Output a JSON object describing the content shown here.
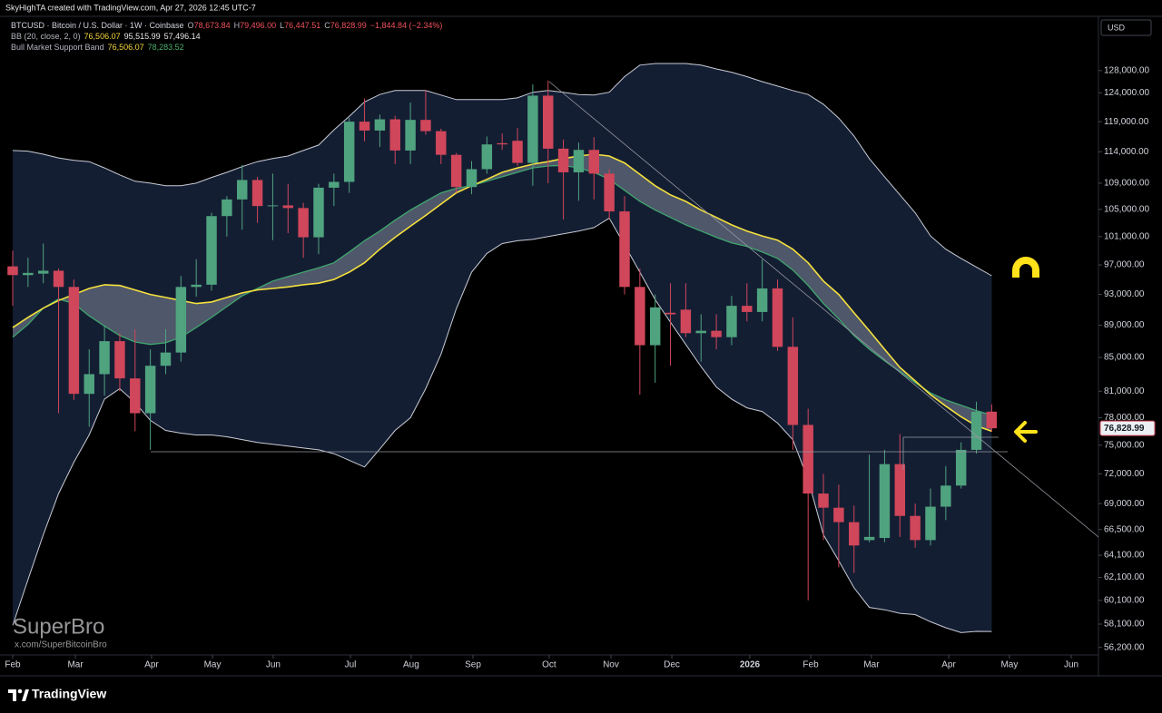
{
  "header": {
    "caption": "SkyHighTA created with TradingView.com, Apr 27, 2026 12:45 UTC-7"
  },
  "chart_data": {
    "type": "candlestick",
    "legend": {
      "ohlc": [
        {
          "label": "O",
          "value": "78,673.84"
        },
        {
          "label": "H",
          "value": "79,496.00"
        },
        {
          "label": "L",
          "value": "76,447.51"
        },
        {
          "label": "C",
          "value": "76,828.99"
        }
      ],
      "change": "−1,844.84 (−2.34%)",
      "change_color": "#f0525e",
      "bb": {
        "label": "BB (20, close, 2, 0)",
        "values": [
          "76,506.07",
          "95,515.99",
          "57,496.14"
        ],
        "colors": [
          "#f5d63d",
          "#e6e6e6",
          "#e6e6e6"
        ]
      },
      "band": {
        "label": "Bull Market Support Band",
        "values": [
          "76,506.07",
          "78,283.52"
        ],
        "colors": [
          "#f5d63d",
          "#4caf6e"
        ]
      }
    },
    "currency": "USD",
    "last_price_label": "76,828.99",
    "series": [
      {
        "name": "BTCUSD · Bitcoin / U.S. Dollar · 1W · Coinbase",
        "up_color": "#4fa37f",
        "down_color": "#d0465a",
        "open": [
          96800,
          95600,
          95800,
          96200,
          94000,
          80700,
          83000,
          87000,
          82500,
          78500,
          84000,
          85600,
          94000,
          94300,
          104000,
          106500,
          109500,
          105500,
          105600,
          105200,
          100900,
          108300,
          109200,
          119000,
          117500,
          119400,
          114200,
          119300,
          117400,
          113500,
          108400,
          111200,
          115400,
          115800,
          112200,
          123500,
          114500,
          110700,
          114300,
          110500,
          104700,
          94000,
          86500,
          90600,
          91000,
          88000,
          88300,
          87500,
          91500,
          90700,
          93800,
          86300,
          77200,
          70000,
          68600,
          67200,
          65500,
          65700,
          73000,
          67800,
          65500,
          68700,
          70800,
          74500,
          78673.84
        ],
        "high": [
          99000,
          98000,
          100000,
          96500,
          95000,
          86000,
          89000,
          88000,
          88500,
          86000,
          88500,
          95500,
          97800,
          104500,
          107000,
          111900,
          110000,
          110500,
          108900,
          106000,
          108900,
          110500,
          119600,
          123000,
          120200,
          120000,
          122300,
          124500,
          117800,
          113800,
          112500,
          116500,
          117000,
          117900,
          125500,
          126200,
          116000,
          115500,
          116400,
          111200,
          107000,
          96500,
          93000,
          94500,
          94500,
          90400,
          90400,
          92800,
          94500,
          97800,
          95000,
          90000,
          79000,
          72000,
          70900,
          68800,
          74000,
          74500,
          76200,
          69000,
          70500,
          72800,
          75300,
          79800,
          79496
        ],
        "low": [
          91500,
          94000,
          94500,
          78500,
          80000,
          77000,
          80500,
          81000,
          76500,
          74500,
          83000,
          84500,
          92700,
          93500,
          101000,
          102000,
          103000,
          100500,
          101500,
          98000,
          98500,
          105500,
          107500,
          115700,
          114800,
          112000,
          112000,
          116800,
          112000,
          107500,
          107300,
          110500,
          114300,
          111700,
          108600,
          109000,
          103500,
          106300,
          106500,
          103500,
          93000,
          80600,
          82000,
          84000,
          87500,
          84500,
          86000,
          86500,
          89500,
          89500,
          85800,
          74500,
          60100,
          65500,
          63000,
          62500,
          65300,
          65300,
          65800,
          64800,
          65000,
          67400,
          70500,
          74100,
          76447.51
        ],
        "close": [
          95600,
          95900,
          96200,
          94000,
          80700,
          83000,
          87000,
          82500,
          78500,
          84000,
          85600,
          94000,
          94300,
          104000,
          106500,
          109500,
          105500,
          105600,
          105200,
          100900,
          108300,
          109200,
          119000,
          117500,
          119400,
          114200,
          119300,
          117400,
          113500,
          108400,
          111200,
          115200,
          115200,
          112200,
          123500,
          114500,
          110700,
          114300,
          110500,
          104700,
          94000,
          86500,
          91300,
          90400,
          88000,
          88300,
          87500,
          91500,
          90700,
          93800,
          86300,
          77200,
          70000,
          68600,
          67200,
          65000,
          65800,
          73000,
          67800,
          65500,
          68700,
          70800,
          74500,
          78673.84,
          76828.99
        ]
      }
    ],
    "bollinger": {
      "line_color": "#c9ccd6",
      "fill": "#141e33",
      "upper": [
        114200,
        114100,
        113600,
        113000,
        112600,
        112400,
        111400,
        110300,
        109300,
        109000,
        108600,
        108600,
        109000,
        109900,
        110700,
        111600,
        112400,
        112900,
        113300,
        114200,
        115100,
        117600,
        119900,
        122400,
        123700,
        124400,
        124400,
        124400,
        123600,
        122800,
        122800,
        122800,
        122800,
        123100,
        124100,
        124400,
        124100,
        123700,
        123600,
        124100,
        126900,
        129000,
        129300,
        129300,
        129300,
        129000,
        128300,
        127700,
        126900,
        126000,
        125200,
        124400,
        123700,
        122000,
        119600,
        116600,
        112900,
        110000,
        107200,
        104500,
        101100,
        99200,
        97900,
        96700,
        95515.99
      ],
      "lower": [
        58000,
        61900,
        66000,
        70000,
        73200,
        76100,
        80100,
        81300,
        79700,
        77700,
        76600,
        76300,
        76100,
        76100,
        75900,
        75600,
        75300,
        75100,
        74900,
        74700,
        74500,
        74100,
        73400,
        72700,
        74600,
        76600,
        78000,
        81300,
        85400,
        91100,
        96000,
        98600,
        100000,
        100400,
        100600,
        101000,
        101400,
        101800,
        102300,
        103700,
        99800,
        96000,
        92300,
        89400,
        86600,
        83900,
        81500,
        80100,
        79100,
        78700,
        77400,
        75600,
        71400,
        66000,
        63600,
        61200,
        59500,
        59300,
        59000,
        58900,
        58300,
        57800,
        57400,
        57500,
        57496.14
      ]
    },
    "support_band": {
      "sma_color": "#f5e13d",
      "ema_color": "#3fa66e",
      "fill": "#6f7789",
      "sma": [
        88700,
        90000,
        91200,
        92200,
        93000,
        93800,
        94300,
        94200,
        93600,
        93000,
        92600,
        92200,
        91800,
        92000,
        92600,
        93200,
        93600,
        93800,
        94000,
        94300,
        94500,
        95000,
        96000,
        97300,
        99200,
        100900,
        102500,
        104100,
        105800,
        107500,
        108600,
        109600,
        110700,
        111400,
        112000,
        112400,
        112900,
        113300,
        113600,
        113300,
        112200,
        110400,
        108600,
        107200,
        106200,
        104900,
        103800,
        102700,
        101800,
        101100,
        100500,
        99200,
        97300,
        94800,
        93000,
        90600,
        88300,
        86000,
        83800,
        82200,
        80600,
        79300,
        78100,
        77100,
        76506.07
      ],
      "ema": [
        87500,
        89100,
        91200,
        92400,
        91800,
        90200,
        88900,
        87700,
        86900,
        86600,
        86800,
        87500,
        88700,
        90000,
        91400,
        92800,
        93800,
        94800,
        95400,
        96000,
        96600,
        97300,
        98800,
        100400,
        101800,
        103400,
        104900,
        106200,
        107500,
        108200,
        108600,
        109300,
        110000,
        110700,
        111400,
        111700,
        111800,
        111400,
        110700,
        109600,
        107900,
        106200,
        104900,
        103800,
        102700,
        101800,
        100900,
        100100,
        99600,
        98800,
        97900,
        96300,
        94200,
        91800,
        89800,
        87700,
        86000,
        84600,
        83300,
        82000,
        80800,
        80000,
        79400,
        78800,
        78283.52
      ]
    },
    "ylim": [
      55600,
      138300
    ],
    "log_y": true,
    "yticks": [
      {
        "value": 128000,
        "label": "128,000.00"
      },
      {
        "value": 124000,
        "label": "124,000.00"
      },
      {
        "value": 119000,
        "label": "119,000.00"
      },
      {
        "value": 114000,
        "label": "114,000.00"
      },
      {
        "value": 109000,
        "label": "109,000.00"
      },
      {
        "value": 105000,
        "label": "105,000.00"
      },
      {
        "value": 101000,
        "label": "101,000.00"
      },
      {
        "value": 97000,
        "label": "97,000.00"
      },
      {
        "value": 93000,
        "label": "93,000.00"
      },
      {
        "value": 89000,
        "label": "89,000.00"
      },
      {
        "value": 85000,
        "label": "85,000.00"
      },
      {
        "value": 81000,
        "label": "81,000.00"
      },
      {
        "value": 78000,
        "label": "78,000.00"
      },
      {
        "value": 75000,
        "label": "75,000.00"
      },
      {
        "value": 72000,
        "label": "72,000.00"
      },
      {
        "value": 69000,
        "label": "69,000.00"
      },
      {
        "value": 66500,
        "label": "66,500.00"
      },
      {
        "value": 64100,
        "label": "64,100.00"
      },
      {
        "value": 62100,
        "label": "62,100.00"
      },
      {
        "value": 60100,
        "label": "60,100.00"
      },
      {
        "value": 58100,
        "label": "58,100.00"
      },
      {
        "value": 56200,
        "label": "56,200.00"
      }
    ],
    "xlim": [
      -0.83,
      70.98
    ],
    "xticks": [
      {
        "value": 0,
        "label": "Feb"
      },
      {
        "value": 4.1,
        "label": "Mar"
      },
      {
        "value": 9.08,
        "label": "Apr"
      },
      {
        "value": 13.06,
        "label": "May"
      },
      {
        "value": 17.03,
        "label": "Jun"
      },
      {
        "value": 22.08,
        "label": "Jul"
      },
      {
        "value": 26.05,
        "label": "Aug"
      },
      {
        "value": 30.09,
        "label": "Sep"
      },
      {
        "value": 35.07,
        "label": "Oct"
      },
      {
        "value": 39.11,
        "label": "Nov"
      },
      {
        "value": 43.09,
        "label": "Dec"
      },
      {
        "value": 48.19,
        "label": "2026"
      },
      {
        "value": 52.17,
        "label": "Feb"
      },
      {
        "value": 56.14,
        "label": "Mar"
      },
      {
        "value": 61.19,
        "label": "Apr"
      },
      {
        "value": 65.16,
        "label": "May"
      },
      {
        "value": 69.2,
        "label": "Jun"
      }
    ],
    "grid": false
  },
  "watermark": {
    "title": "SuperBro",
    "handle": "x.com/SuperBitcoinBro"
  },
  "footer": {
    "brand": "TradingView"
  }
}
